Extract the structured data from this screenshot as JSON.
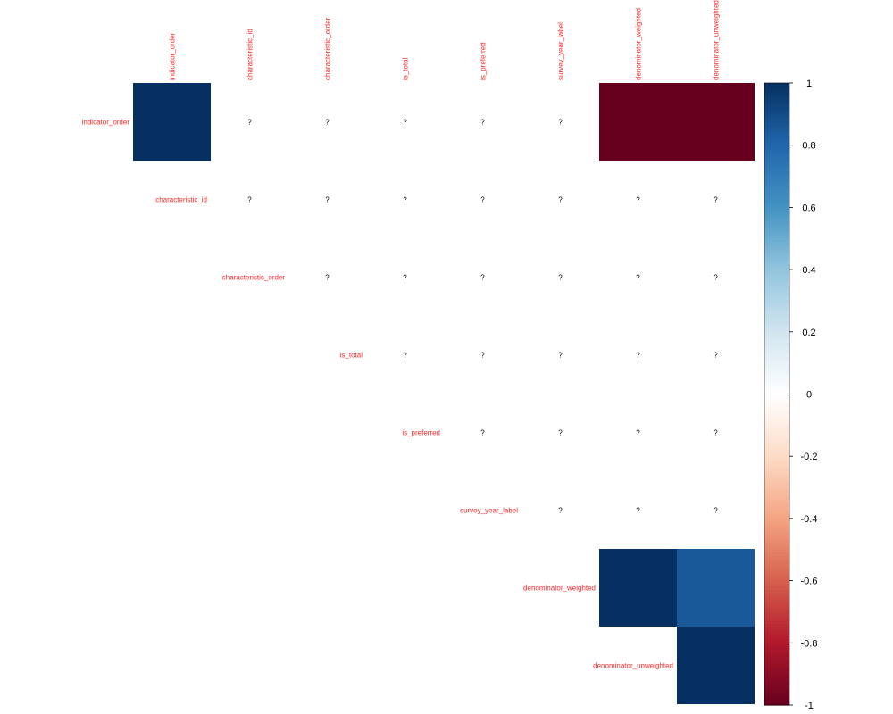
{
  "chart_data": {
    "type": "heatmap",
    "variables": [
      "indicator_order",
      "characteristic_id",
      "characteristic_order",
      "is_total",
      "is_preferred",
      "survey_year_label",
      "denominator_weighted",
      "denominator_unweighted"
    ],
    "matrix": [
      [
        1,
        null,
        null,
        null,
        null,
        null,
        -1,
        -1
      ],
      [
        null,
        null,
        null,
        null,
        null,
        null,
        null,
        null
      ],
      [
        null,
        null,
        null,
        null,
        null,
        null,
        null,
        null
      ],
      [
        null,
        null,
        null,
        null,
        null,
        null,
        null,
        null
      ],
      [
        null,
        null,
        null,
        null,
        null,
        null,
        null,
        null
      ],
      [
        null,
        null,
        null,
        null,
        null,
        null,
        null,
        null
      ],
      [
        null,
        null,
        null,
        null,
        null,
        null,
        1,
        0.85
      ],
      [
        null,
        null,
        null,
        null,
        null,
        null,
        null,
        1
      ]
    ],
    "missing_symbol": "?",
    "upper_triangle_only": true,
    "colorbar": {
      "ticks": [
        1,
        0.8,
        0.6,
        0.4,
        0.2,
        0,
        -0.2,
        -0.4,
        -0.6,
        -0.8,
        -1
      ],
      "tick_labels": [
        "1",
        "0.8",
        "0.6",
        "0.4",
        "0.2",
        "0",
        "-0.2",
        "-0.4",
        "-0.6",
        "-0.8",
        "-1"
      ],
      "range": [
        -1,
        1
      ],
      "colors": [
        "#67001f",
        "#b2182b",
        "#d6604d",
        "#f4a582",
        "#fddbc7",
        "#ffffff",
        "#d1e5f0",
        "#92c5de",
        "#4393c3",
        "#2166ac",
        "#053061"
      ]
    },
    "label_color": "#ff2a2a"
  }
}
